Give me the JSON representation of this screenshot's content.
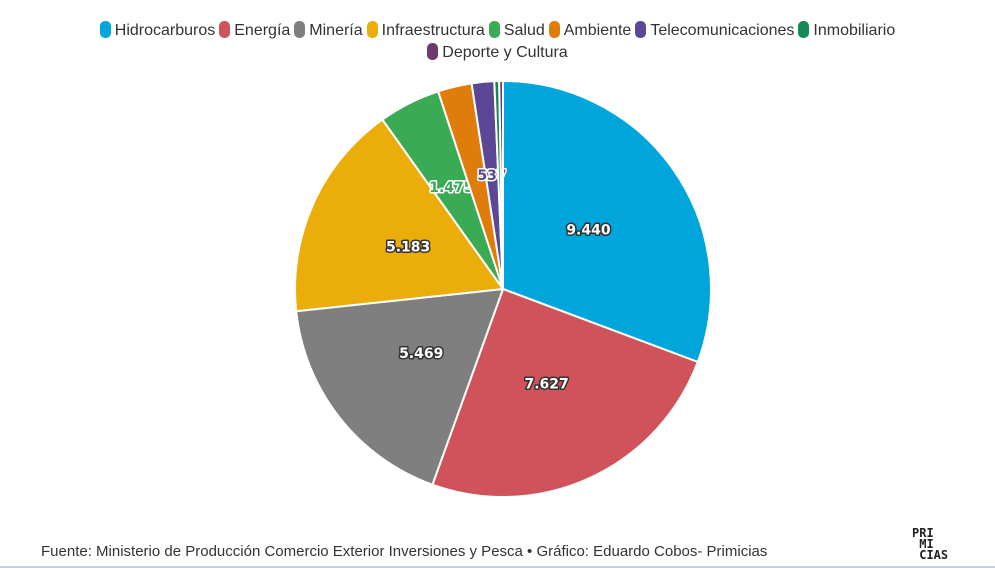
{
  "chart_data": {
    "type": "pie",
    "title": "",
    "categories": [
      "Hidrocarburos",
      "Energía",
      "Minería",
      "Infraestructura",
      "Salud",
      "Ambiente",
      "Telecomunicaciones",
      "Inmobiliario",
      "Deporte y Cultura"
    ],
    "values": [
      9440,
      7627,
      5469,
      5183,
      1475,
      810,
      537,
      115,
      90
    ],
    "data_labels": [
      "9.440",
      "7.627",
      "5.469",
      "5.183",
      "1.475",
      "",
      "537",
      "",
      ""
    ],
    "colors": [
      "#00a5dc",
      "#d0525a",
      "#7f7f7f",
      "#ebad0a",
      "#3aaa55",
      "#e07c0a",
      "#5b4796",
      "#158a57",
      "#6e3a6e"
    ],
    "legend_placement": "top"
  },
  "footer": {
    "source": "Fuente: Ministerio de Producción Comercio Exterior Inversiones y Pesca • Gráfico: Eduardo Cobos- Primicias",
    "logo_text": "PRIMICIAS"
  }
}
